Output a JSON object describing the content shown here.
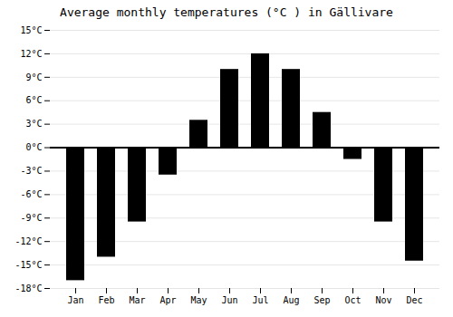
{
  "chart_data": {
    "type": "bar",
    "title": "Average monthly temperatures (°C ) in Gällivare",
    "categories": [
      "Jan",
      "Feb",
      "Mar",
      "Apr",
      "May",
      "Jun",
      "Jul",
      "Aug",
      "Sep",
      "Oct",
      "Nov",
      "Dec"
    ],
    "values": [
      -17,
      -14,
      -9.5,
      -3.5,
      3.5,
      10,
      12,
      10,
      4.5,
      -1.5,
      -9.5,
      -14.5
    ],
    "ylim": [
      -18,
      15
    ],
    "yticks": [
      {
        "value": -18,
        "label": "-18°C"
      },
      {
        "value": -15,
        "label": "-15°C"
      },
      {
        "value": -12,
        "label": "-12°C"
      },
      {
        "value": -9,
        "label": "-9°C"
      },
      {
        "value": -6,
        "label": "-6°C"
      },
      {
        "value": -3,
        "label": "-3°C"
      },
      {
        "value": 0,
        "label": "0°C"
      },
      {
        "value": 3,
        "label": "3°C"
      },
      {
        "value": 6,
        "label": "6°C"
      },
      {
        "value": 9,
        "label": "9°C"
      },
      {
        "value": 12,
        "label": "12°C"
      },
      {
        "value": 15,
        "label": "15°C"
      }
    ],
    "grid": true
  }
}
